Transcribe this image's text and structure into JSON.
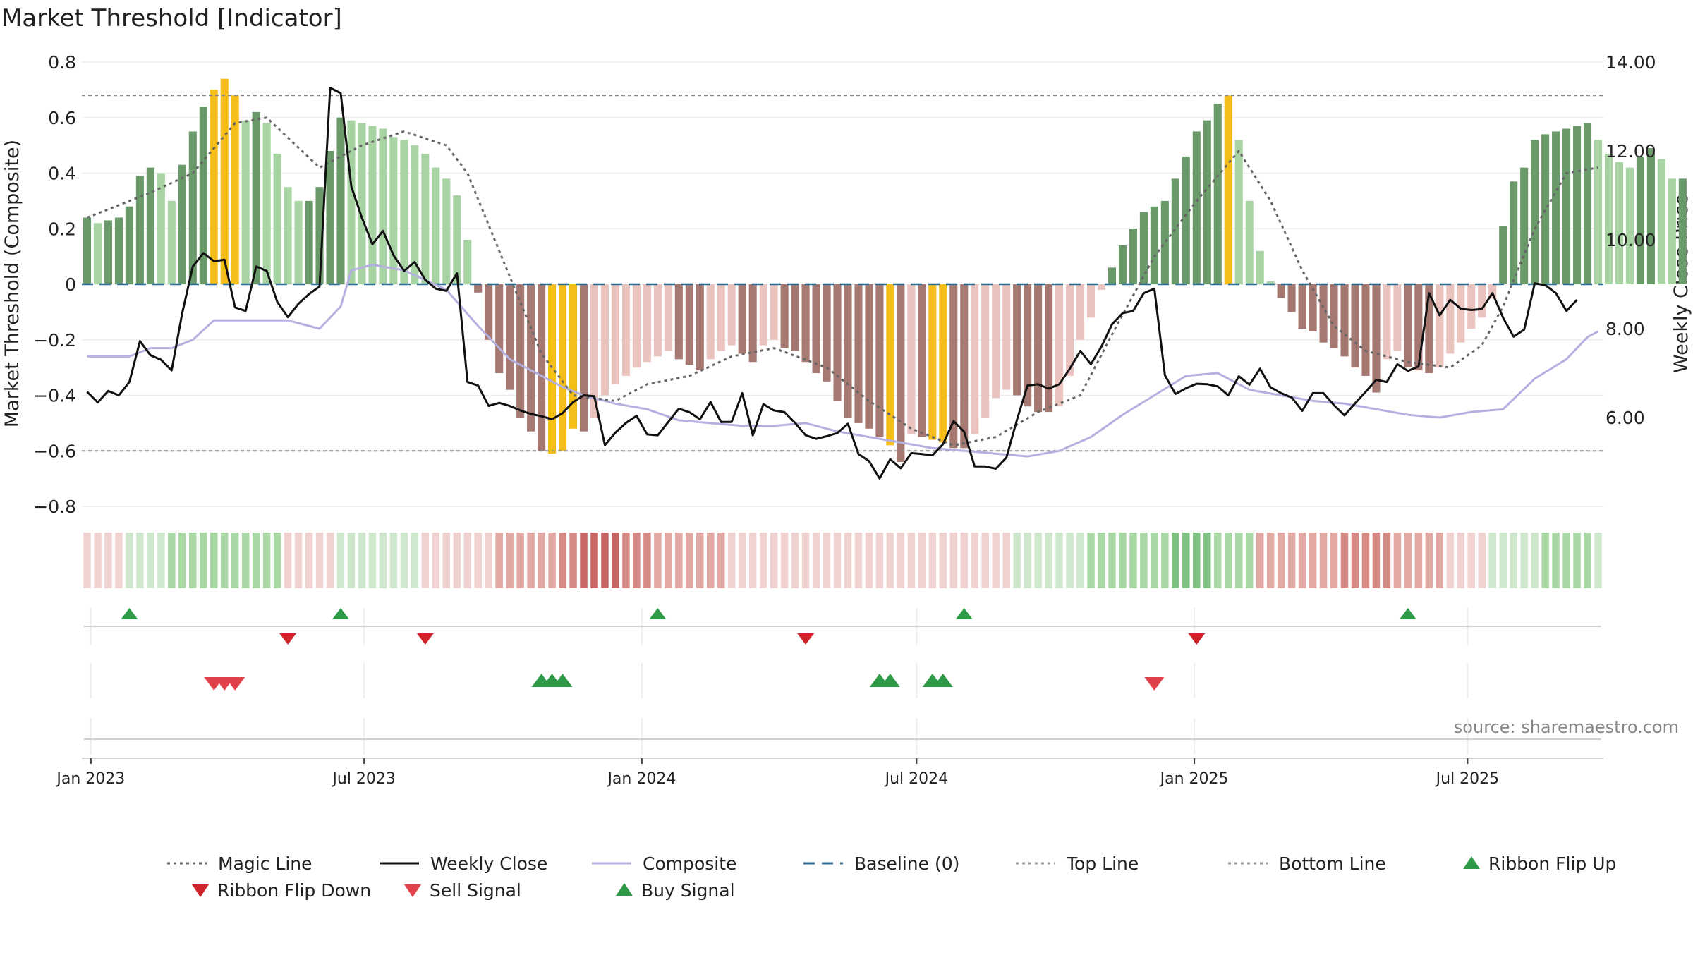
{
  "chart_data": {
    "type": "bar",
    "title": "Market Threshold [Indicator]",
    "ylabel": "Market Threshold (Composite)",
    "ylabel_right": "Weekly Close Price",
    "source": "source: sharemaestro.com",
    "ylim": [
      -0.8,
      0.8
    ],
    "ylim_right": [
      4.0,
      14.0
    ],
    "yticks": [
      0.8,
      0.6,
      0.4,
      0.2,
      0,
      -0.2,
      -0.4,
      -0.6,
      -0.8
    ],
    "ytick_labels": [
      "0.8",
      "0.6",
      "0.4",
      "0.2",
      "0",
      "−0.2",
      "−0.4",
      "−0.6",
      "−0.8"
    ],
    "yticks_right": [
      14,
      12,
      10,
      8,
      6
    ],
    "ytick_labels_right": [
      "14.00",
      "12.00",
      "10.00",
      "8.00",
      "6.00"
    ],
    "x_start": "2022-12-26",
    "x_end": "2025-09-29",
    "xticks": [
      "2023-01-01",
      "2023-07-01",
      "2024-01-01",
      "2024-07-01",
      "2025-01-01",
      "2025-07-01"
    ],
    "xtick_labels": [
      "Jan 2023",
      "Jul 2023",
      "Jan 2024",
      "Jul 2024",
      "Jan 2025",
      "Jul 2025"
    ],
    "grid": true,
    "top_line": 0.68,
    "bottom_line": -0.6,
    "baseline": 0,
    "weeks": 144,
    "segments": [
      {
        "start": 0,
        "values": [
          0.24,
          0.22,
          0.23,
          0.24,
          0.28,
          0.39,
          0.42,
          0.4,
          0.3,
          0.43,
          0.55,
          0.64,
          0.7,
          0.74,
          0.68,
          0.59,
          0.62,
          0.58,
          0.47,
          0.35,
          0.3,
          0.3,
          0.35,
          0.48,
          0.6,
          0.59,
          0.58,
          0.57,
          0.56,
          0.53,
          0.52,
          0.5,
          0.47,
          0.42,
          0.38,
          0.32,
          0.16
        ]
      },
      {
        "start": 37,
        "values": [
          -0.03,
          -0.2,
          -0.32,
          -0.38,
          -0.48,
          -0.53,
          -0.6,
          -0.61,
          -0.6,
          -0.52,
          -0.53,
          -0.48,
          -0.4,
          -0.36,
          -0.33,
          -0.3,
          -0.28,
          -0.26,
          -0.24,
          -0.27,
          -0.29,
          -0.31,
          -0.27,
          -0.24,
          -0.22,
          -0.25,
          -0.28,
          -0.22,
          -0.2,
          -0.23,
          -0.24,
          -0.28,
          -0.32,
          -0.35,
          -0.42,
          -0.48,
          -0.5,
          -0.52,
          -0.55,
          -0.58,
          -0.64,
          -0.54,
          -0.55,
          -0.56,
          -0.57,
          -0.59,
          -0.59,
          -0.54,
          -0.48,
          -0.41,
          -0.38,
          -0.4,
          -0.44,
          -0.46,
          -0.46,
          -0.44,
          -0.33,
          -0.2,
          -0.12,
          -0.02
        ]
      },
      {
        "start": 97,
        "values": [
          0.06,
          0.14,
          0.2,
          0.26,
          0.28,
          0.3,
          0.38,
          0.46,
          0.55,
          0.59,
          0.65,
          0.68,
          0.52,
          0.3,
          0.12,
          0.01
        ]
      },
      {
        "start": 113,
        "values": [
          -0.05,
          -0.1,
          -0.16,
          -0.17,
          -0.21,
          -0.23,
          -0.26,
          -0.3,
          -0.33,
          -0.39,
          -0.27,
          -0.24,
          -0.3,
          -0.31,
          -0.32,
          -0.3,
          -0.25,
          -0.21,
          -0.16,
          -0.12,
          -0.05
        ]
      },
      {
        "start": 134,
        "values": [
          0.21,
          0.37,
          0.42,
          0.52,
          0.54,
          0.55,
          0.56,
          0.57,
          0.58,
          0.52,
          0.47,
          0.44,
          0.42,
          0.46,
          0.49,
          0.45,
          0.38,
          0.38
        ]
      }
    ],
    "magic_line": [
      [
        0,
        0.24
      ],
      [
        6,
        0.33
      ],
      [
        10,
        0.4
      ],
      [
        14,
        0.58
      ],
      [
        17,
        0.6
      ],
      [
        22,
        0.42
      ],
      [
        26,
        0.5
      ],
      [
        30,
        0.55
      ],
      [
        34,
        0.5
      ],
      [
        36,
        0.4
      ],
      [
        39,
        0.12
      ],
      [
        43,
        -0.25
      ],
      [
        46,
        -0.4
      ],
      [
        50,
        -0.42
      ],
      [
        53,
        -0.36
      ],
      [
        57,
        -0.33
      ],
      [
        61,
        -0.26
      ],
      [
        65,
        -0.23
      ],
      [
        70,
        -0.3
      ],
      [
        74,
        -0.42
      ],
      [
        78,
        -0.52
      ],
      [
        82,
        -0.58
      ],
      [
        86,
        -0.55
      ],
      [
        90,
        -0.46
      ],
      [
        94,
        -0.4
      ],
      [
        97,
        -0.18
      ],
      [
        101,
        0.1
      ],
      [
        105,
        0.3
      ],
      [
        109,
        0.48
      ],
      [
        112,
        0.3
      ],
      [
        115,
        0.05
      ],
      [
        118,
        -0.15
      ],
      [
        121,
        -0.24
      ],
      [
        125,
        -0.28
      ],
      [
        129,
        -0.3
      ],
      [
        132,
        -0.22
      ],
      [
        134,
        -0.08
      ],
      [
        137,
        0.2
      ],
      [
        140,
        0.4
      ],
      [
        143,
        0.42
      ]
    ],
    "composite_line": [
      [
        0,
        -0.26
      ],
      [
        4,
        -0.26
      ],
      [
        6,
        -0.23
      ],
      [
        8,
        -0.23
      ],
      [
        10,
        -0.2
      ],
      [
        12,
        -0.13
      ],
      [
        14,
        -0.13
      ],
      [
        17,
        -0.13
      ],
      [
        19,
        -0.13
      ],
      [
        22,
        -0.16
      ],
      [
        24,
        -0.08
      ],
      [
        25,
        0.05
      ],
      [
        27,
        0.07
      ],
      [
        30,
        0.05
      ],
      [
        34,
        -0.02
      ],
      [
        37,
        -0.15
      ],
      [
        40,
        -0.27
      ],
      [
        43,
        -0.33
      ],
      [
        45,
        -0.37
      ],
      [
        47,
        -0.4
      ],
      [
        50,
        -0.43
      ],
      [
        53,
        -0.45
      ],
      [
        56,
        -0.49
      ],
      [
        59,
        -0.5
      ],
      [
        62,
        -0.51
      ],
      [
        65,
        -0.51
      ],
      [
        68,
        -0.5
      ],
      [
        71,
        -0.53
      ],
      [
        74,
        -0.55
      ],
      [
        77,
        -0.57
      ],
      [
        80,
        -0.59
      ],
      [
        83,
        -0.6
      ],
      [
        86,
        -0.61
      ],
      [
        89,
        -0.62
      ],
      [
        92,
        -0.6
      ],
      [
        95,
        -0.55
      ],
      [
        98,
        -0.47
      ],
      [
        101,
        -0.4
      ],
      [
        104,
        -0.33
      ],
      [
        107,
        -0.32
      ],
      [
        110,
        -0.38
      ],
      [
        113,
        -0.4
      ],
      [
        116,
        -0.42
      ],
      [
        119,
        -0.43
      ],
      [
        122,
        -0.45
      ],
      [
        125,
        -0.47
      ],
      [
        128,
        -0.48
      ],
      [
        131,
        -0.46
      ],
      [
        134,
        -0.45
      ],
      [
        137,
        -0.34
      ],
      [
        140,
        -0.27
      ],
      [
        142,
        -0.19
      ],
      [
        143,
        -0.17
      ]
    ],
    "weekly_close": [
      [
        0,
        6.58
      ],
      [
        1,
        6.34
      ],
      [
        2,
        6.6
      ],
      [
        3,
        6.5
      ],
      [
        4,
        6.8
      ],
      [
        5,
        7.72
      ],
      [
        6,
        7.4
      ],
      [
        7,
        7.3
      ],
      [
        8,
        7.06
      ],
      [
        9,
        8.35
      ],
      [
        10,
        9.4
      ],
      [
        11,
        9.7
      ],
      [
        12,
        9.52
      ],
      [
        13,
        9.55
      ],
      [
        14,
        8.48
      ],
      [
        15,
        8.4
      ],
      [
        16,
        9.4
      ],
      [
        17,
        9.3
      ],
      [
        18,
        8.6
      ],
      [
        19,
        8.26
      ],
      [
        20,
        8.56
      ],
      [
        21,
        8.78
      ],
      [
        22,
        8.95
      ],
      [
        23,
        13.42
      ],
      [
        24,
        13.3
      ],
      [
        25,
        11.2
      ],
      [
        26,
        10.5
      ],
      [
        27,
        9.9
      ],
      [
        28,
        10.2
      ],
      [
        29,
        9.65
      ],
      [
        30,
        9.3
      ],
      [
        31,
        9.5
      ],
      [
        32,
        9.1
      ],
      [
        33,
        8.9
      ],
      [
        34,
        8.85
      ],
      [
        35,
        9.25
      ],
      [
        36,
        6.8
      ],
      [
        37,
        6.72
      ],
      [
        38,
        6.26
      ],
      [
        39,
        6.33
      ],
      [
        40,
        6.26
      ],
      [
        41,
        6.16
      ],
      [
        42,
        6.08
      ],
      [
        43,
        6.03
      ],
      [
        44,
        5.96
      ],
      [
        45,
        6.1
      ],
      [
        46,
        6.35
      ],
      [
        47,
        6.5
      ],
      [
        48,
        6.48
      ],
      [
        49,
        5.38
      ],
      [
        50,
        5.66
      ],
      [
        51,
        5.88
      ],
      [
        52,
        6.04
      ],
      [
        53,
        5.62
      ],
      [
        54,
        5.6
      ],
      [
        55,
        5.9
      ],
      [
        56,
        6.2
      ],
      [
        57,
        6.12
      ],
      [
        58,
        5.96
      ],
      [
        59,
        6.35
      ],
      [
        60,
        5.9
      ],
      [
        61,
        5.9
      ],
      [
        62,
        6.55
      ],
      [
        63,
        5.6
      ],
      [
        64,
        6.3
      ],
      [
        65,
        6.16
      ],
      [
        66,
        6.12
      ],
      [
        67,
        5.88
      ],
      [
        68,
        5.6
      ],
      [
        69,
        5.52
      ],
      [
        70,
        5.58
      ],
      [
        71,
        5.65
      ],
      [
        72,
        5.86
      ],
      [
        73,
        5.18
      ],
      [
        74,
        5.02
      ],
      [
        75,
        4.63
      ],
      [
        76,
        5.06
      ],
      [
        77,
        4.86
      ],
      [
        78,
        5.2
      ],
      [
        79,
        5.18
      ],
      [
        80,
        5.15
      ],
      [
        81,
        5.4
      ],
      [
        82,
        5.92
      ],
      [
        83,
        5.68
      ],
      [
        84,
        4.9
      ],
      [
        85,
        4.9
      ],
      [
        86,
        4.85
      ],
      [
        87,
        5.1
      ],
      [
        88,
        5.95
      ],
      [
        89,
        6.72
      ],
      [
        90,
        6.75
      ],
      [
        91,
        6.65
      ],
      [
        92,
        6.75
      ],
      [
        93,
        7.1
      ],
      [
        94,
        7.5
      ],
      [
        95,
        7.2
      ],
      [
        96,
        7.6
      ],
      [
        97,
        8.1
      ],
      [
        98,
        8.35
      ],
      [
        99,
        8.4
      ],
      [
        100,
        8.8
      ],
      [
        101,
        8.9
      ],
      [
        102,
        6.95
      ],
      [
        103,
        6.53
      ],
      [
        104,
        6.66
      ],
      [
        105,
        6.76
      ],
      [
        106,
        6.75
      ],
      [
        107,
        6.7
      ],
      [
        108,
        6.5
      ],
      [
        109,
        6.93
      ],
      [
        110,
        6.74
      ],
      [
        111,
        7.1
      ],
      [
        112,
        6.68
      ],
      [
        113,
        6.55
      ],
      [
        114,
        6.45
      ],
      [
        115,
        6.15
      ],
      [
        116,
        6.55
      ],
      [
        117,
        6.55
      ],
      [
        118,
        6.28
      ],
      [
        119,
        6.05
      ],
      [
        120,
        6.32
      ],
      [
        121,
        6.58
      ],
      [
        122,
        6.85
      ],
      [
        123,
        6.8
      ],
      [
        124,
        7.2
      ],
      [
        125,
        7.05
      ],
      [
        126,
        7.15
      ],
      [
        127,
        8.8
      ],
      [
        128,
        8.3
      ],
      [
        129,
        8.65
      ],
      [
        130,
        8.45
      ],
      [
        131,
        8.42
      ],
      [
        132,
        8.44
      ],
      [
        133,
        8.8
      ],
      [
        134,
        8.25
      ],
      [
        135,
        7.82
      ],
      [
        136,
        7.98
      ],
      [
        137,
        9.02
      ],
      [
        138,
        8.98
      ],
      [
        139,
        8.8
      ],
      [
        140,
        8.4
      ],
      [
        141,
        8.65
      ]
    ],
    "highlighted_bars": [
      12,
      13,
      14,
      44,
      45,
      46,
      76,
      80,
      81,
      108
    ],
    "ribbon_blocks": [
      [
        0,
        4,
        -1
      ],
      [
        4,
        8,
        1
      ],
      [
        8,
        19,
        2
      ],
      [
        19,
        24,
        -1
      ],
      [
        24,
        32,
        1
      ],
      [
        32,
        39,
        -1
      ],
      [
        39,
        45,
        -2
      ],
      [
        45,
        47,
        -3
      ],
      [
        47,
        51,
        -4
      ],
      [
        51,
        54,
        -3
      ],
      [
        54,
        61,
        -2
      ],
      [
        61,
        75,
        -1
      ],
      [
        75,
        88,
        -1
      ],
      [
        88,
        95,
        1
      ],
      [
        95,
        103,
        2
      ],
      [
        103,
        107,
        3
      ],
      [
        107,
        111,
        2
      ],
      [
        111,
        119,
        -2
      ],
      [
        119,
        124,
        -3
      ],
      [
        124,
        129,
        -2
      ],
      [
        129,
        133,
        -1
      ],
      [
        133,
        138,
        1
      ],
      [
        138,
        143,
        2
      ],
      [
        143,
        144,
        1
      ]
    ],
    "ribbon_flip_up": [
      4,
      24,
      54,
      83,
      125
    ],
    "ribbon_flip_down": [
      19,
      32,
      68,
      105
    ],
    "sell_signals": [
      12,
      13,
      14,
      101
    ],
    "buy_signals": [
      43,
      44,
      45,
      75,
      76,
      80,
      81
    ],
    "legend": [
      {
        "label": "Magic Line",
        "style": "dotted",
        "color": "#666666"
      },
      {
        "label": "Weekly Close",
        "style": "solid",
        "color": "#111111"
      },
      {
        "label": "Composite",
        "style": "solid",
        "color": "#b6b0e0"
      },
      {
        "label": "Baseline (0)",
        "style": "dashed",
        "color": "#2c6e91"
      },
      {
        "label": "Top Line",
        "style": "dotted",
        "color": "#999999"
      },
      {
        "label": "Bottom Line",
        "style": "dotted",
        "color": "#999999"
      },
      {
        "label": "Ribbon Flip Up",
        "style": "triangle-up",
        "color": "#2e9a47"
      },
      {
        "label": "Ribbon Flip Down",
        "style": "triangle-down",
        "color": "#d0242b"
      },
      {
        "label": "Sell Signal",
        "style": "triangle-down",
        "color": "#e0404a"
      },
      {
        "label": "Buy Signal",
        "style": "triangle-up",
        "color": "#2e9a47"
      }
    ],
    "colors": {
      "pos_strong": "#6a9a6a",
      "pos_light": "#a8d4a4",
      "neg_strong": "#a57871",
      "neg_light": "#ebc3be",
      "highlight": "#f5bd17",
      "magic": "#666666",
      "weekly": "#111111",
      "composite": "#b6b0e0",
      "baseline": "#2c6e91",
      "flip_up": "#2e9a47",
      "flip_down": "#d0242b",
      "sell": "#e0404a",
      "buy": "#2e9a47"
    }
  }
}
